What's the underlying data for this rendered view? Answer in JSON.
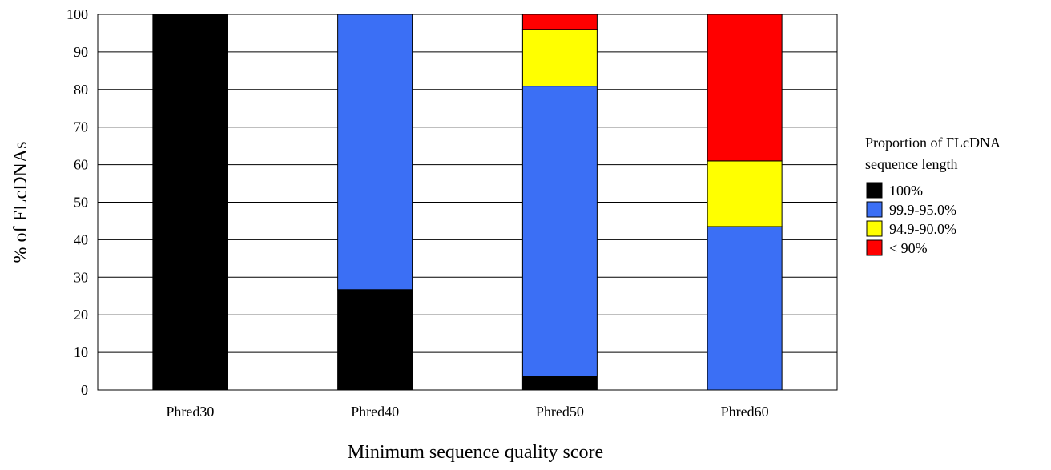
{
  "chart_data": {
    "type": "bar",
    "stacked": true,
    "categories": [
      "Phred30",
      "Phred40",
      "Phred50",
      "Phred60"
    ],
    "series": [
      {
        "name": "100%",
        "color": "#000000",
        "values": [
          100,
          26.7,
          3.7,
          0
        ]
      },
      {
        "name": "99.9-95.0%",
        "color": "#3b6ff5",
        "values": [
          0,
          73.3,
          77.2,
          43.5
        ]
      },
      {
        "name": "94.9-90.0%",
        "color": "#ffff00",
        "values": [
          0,
          0,
          15.1,
          17.5
        ]
      },
      {
        "name": "< 90%",
        "color": "#ff0000",
        "values": [
          0,
          0,
          4.0,
          39.0
        ]
      }
    ],
    "title": "",
    "xlabel": "Minimum sequence quality score",
    "ylabel": "% of FLcDNAs",
    "ylim": [
      0,
      100
    ],
    "yticks": [
      0,
      10,
      20,
      30,
      40,
      50,
      60,
      70,
      80,
      90,
      100
    ],
    "grid": true,
    "legend": {
      "placement": "right",
      "title_lines": [
        "Proportion of FLcDNA",
        "sequence length"
      ]
    }
  }
}
